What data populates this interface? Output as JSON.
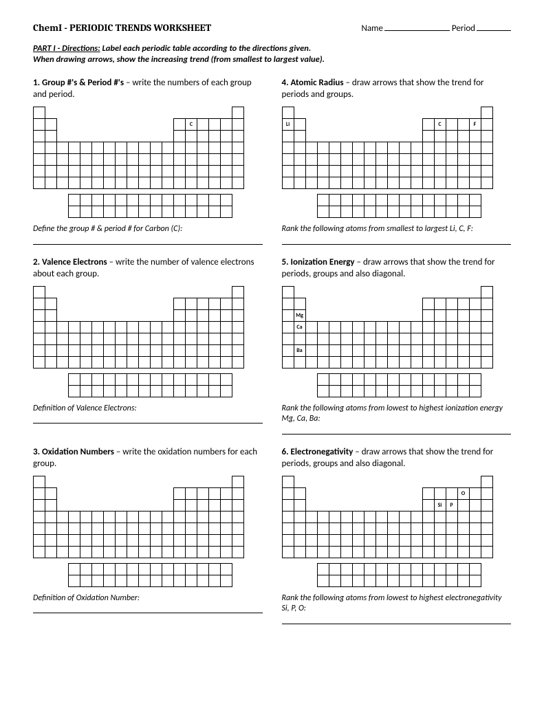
{
  "header": {
    "title": "ChemI - PERIODIC TRENDS WORKSHEET",
    "name_label": "Name",
    "period_label": "Period"
  },
  "directions": {
    "part_label": "PART I - Directions:",
    "line1": "Label each periodic table according to the directions given.",
    "line2": "When drawing arrows, show the increasing trend (from smallest to largest value)."
  },
  "periodic_table": {
    "cell_size": 17,
    "main_cols": 18,
    "main_rows": 7,
    "f_block_rows": 2,
    "f_block_cols": 14,
    "f_block_offset_cols": 3,
    "f_block_gap": 8,
    "row_layout": [
      {
        "row": 0,
        "ranges": [
          [
            0,
            0
          ],
          [
            17,
            17
          ]
        ]
      },
      {
        "row": 1,
        "ranges": [
          [
            0,
            1
          ],
          [
            12,
            17
          ]
        ]
      },
      {
        "row": 2,
        "ranges": [
          [
            0,
            1
          ],
          [
            12,
            17
          ]
        ]
      },
      {
        "row": 3,
        "ranges": [
          [
            0,
            17
          ]
        ]
      },
      {
        "row": 4,
        "ranges": [
          [
            0,
            17
          ]
        ]
      },
      {
        "row": 5,
        "ranges": [
          [
            0,
            17
          ]
        ]
      },
      {
        "row": 6,
        "ranges": [
          [
            0,
            17
          ]
        ]
      }
    ]
  },
  "questions": [
    {
      "num": "1.",
      "title": "Group #'s & Period #'s",
      "desc": " – write the numbers of each group and period.",
      "labels": [
        {
          "row": 1,
          "col": 13,
          "text": "C"
        }
      ],
      "followup_lead": "Define the group # & period # for Carbon (C):",
      "followup_trail": ""
    },
    {
      "num": "4.",
      "title": "Atomic Radius",
      "desc": " – draw arrows that show the trend for periods and groups.",
      "labels": [
        {
          "row": 1,
          "col": 0,
          "text": "Li"
        },
        {
          "row": 1,
          "col": 13,
          "text": "C"
        },
        {
          "row": 1,
          "col": 16,
          "text": "F"
        }
      ],
      "followup_lead": "Rank the following atoms from smallest to largest Li, C, F:",
      "followup_trail": ""
    },
    {
      "num": "2.",
      "title": "Valence Electrons",
      "desc": " – write the number of valence electrons about each group.",
      "labels": [],
      "followup_lead": "Definition of Valence Electrons: ",
      "followup_trail": ""
    },
    {
      "num": "5.",
      "title": "Ionization Energy",
      "desc": " – draw arrows that show the trend for periods, groups and also diagonal.",
      "labels": [
        {
          "row": 2,
          "col": 1,
          "text": "Mg"
        },
        {
          "row": 3,
          "col": 1,
          "text": "Ca"
        },
        {
          "row": 5,
          "col": 1,
          "text": "Ba"
        }
      ],
      "followup_lead": "Rank the following atoms from lowest to highest ionization energy  Mg, Ca, Ba:",
      "followup_trail": ""
    },
    {
      "num": "3.",
      "title": "Oxidation Numbers",
      "desc": " – write the oxidation numbers for each group.",
      "labels": [],
      "followup_lead": "Definition of Oxidation Number: ",
      "followup_trail": ""
    },
    {
      "num": "6.",
      "title": "Electronegativity",
      "desc": " – draw arrows that show the trend for periods, groups and also diagonal.",
      "labels": [
        {
          "row": 1,
          "col": 15,
          "text": "O"
        },
        {
          "row": 2,
          "col": 13,
          "text": "Si"
        },
        {
          "row": 2,
          "col": 14,
          "text": "P"
        }
      ],
      "followup_lead": "Rank the following atoms from lowest to highest electronegativity  Si, P, O:",
      "followup_trail": ""
    }
  ]
}
